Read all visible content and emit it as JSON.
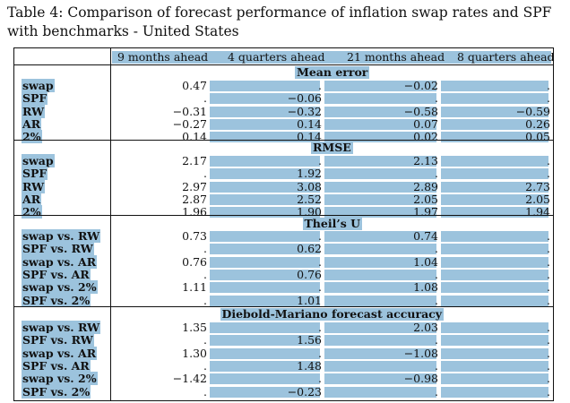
{
  "caption": "Table 4: Comparison of forecast performance of inflation swap rates and SPF with benchmarks - United States",
  "columns": [
    "9 months ahead",
    "4 quarters ahead",
    "21 months ahead",
    "8 quarters ahead"
  ],
  "sections": [
    {
      "title": "Mean error",
      "rows": [
        {
          "label": "swap",
          "values": [
            "0.47",
            ".",
            "−0.02",
            "."
          ]
        },
        {
          "label": "SPF",
          "values": [
            ".",
            "−0.06",
            ".",
            "."
          ]
        },
        {
          "label": "RW",
          "values": [
            "−0.31",
            "−0.32",
            "−0.58",
            "−0.59"
          ]
        },
        {
          "label": "AR",
          "values": [
            "−0.27",
            "0.14",
            "0.07",
            "0.26"
          ]
        },
        {
          "label": "2%",
          "values": [
            "0.14",
            "0.14",
            "0.02",
            "0.05"
          ]
        }
      ]
    },
    {
      "title": "RMSE",
      "rows": [
        {
          "label": "swap",
          "values": [
            "2.17",
            ".",
            "2.13",
            "."
          ]
        },
        {
          "label": "SPF",
          "values": [
            ".",
            "1.92",
            ".",
            "."
          ]
        },
        {
          "label": "RW",
          "values": [
            "2.97",
            "3.08",
            "2.89",
            "2.73"
          ]
        },
        {
          "label": "AR",
          "values": [
            "2.87",
            "2.52",
            "2.05",
            "2.05"
          ]
        },
        {
          "label": "2%",
          "values": [
            "1.96",
            "1.90",
            "1.97",
            "1.94"
          ]
        }
      ]
    },
    {
      "title": "Theil’s U",
      "rows": [
        {
          "label": "swap vs. RW",
          "values": [
            "0.73",
            ".",
            "0.74",
            "."
          ]
        },
        {
          "label": "SPF vs. RW",
          "values": [
            ".",
            "0.62",
            ".",
            "."
          ]
        },
        {
          "label": "swap vs. AR",
          "values": [
            "0.76",
            ".",
            "1.04",
            "."
          ]
        },
        {
          "label": "SPF vs. AR",
          "values": [
            ".",
            "0.76",
            ".",
            "."
          ]
        },
        {
          "label": "swap vs. 2%",
          "values": [
            "1.11",
            ".",
            "1.08",
            "."
          ]
        },
        {
          "label": "SPF vs. 2%",
          "values": [
            ".",
            "1.01",
            ".",
            "."
          ]
        }
      ]
    },
    {
      "title": "Diebold-Mariano forecast accuracy",
      "rows": [
        {
          "label": "swap vs. RW",
          "values": [
            "1.35",
            ".",
            "2.03",
            "."
          ]
        },
        {
          "label": "SPF vs. RW",
          "values": [
            ".",
            "1.56",
            ".",
            "."
          ]
        },
        {
          "label": "swap vs. AR",
          "values": [
            "1.30",
            ".",
            "−1.08",
            "."
          ]
        },
        {
          "label": "SPF vs. AR",
          "values": [
            ".",
            "1.48",
            ".",
            "."
          ]
        },
        {
          "label": "swap vs. 2%",
          "values": [
            "−1.42",
            ".",
            "−0.98",
            "."
          ]
        },
        {
          "label": "SPF vs. 2%",
          "values": [
            ".",
            "−0.23",
            ".",
            "."
          ]
        }
      ]
    }
  ],
  "highlight_color": "#9cc3dd"
}
